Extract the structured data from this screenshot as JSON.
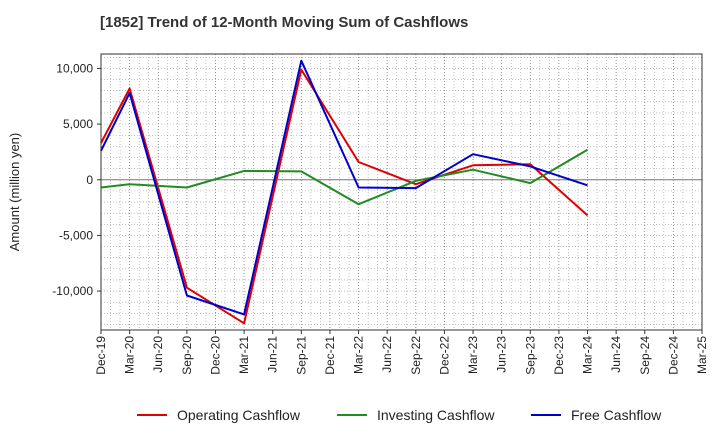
{
  "chart_data": {
    "type": "line",
    "title": "[1852]  Trend of 12-Month Moving Sum of Cashflows",
    "xlabel": "",
    "ylabel": "Amount (million yen)",
    "categories": [
      "Dec-19",
      "Mar-20",
      "Jun-20",
      "Sep-20",
      "Dec-20",
      "Mar-21",
      "Jun-21",
      "Sep-21",
      "Dec-21",
      "Mar-22",
      "Jun-22",
      "Sep-22",
      "Dec-22",
      "Mar-23",
      "Jun-23",
      "Sep-23",
      "Dec-23",
      "Mar-24",
      "Jun-24",
      "Sep-24",
      "Dec-24",
      "Mar-25"
    ],
    "ylim": [
      -13500,
      11300
    ],
    "yticks": [
      10000,
      5000,
      0,
      -5000,
      -10000
    ],
    "ytick_labels": [
      "10,000",
      "5,000",
      "0",
      "-5,000",
      "-10,000"
    ],
    "grid": true,
    "legend_position": "bottom",
    "series": [
      {
        "name": "Operating Cashflow",
        "color": "#e00000",
        "values": [
          3300,
          8200,
          null,
          -9700,
          null,
          -12900,
          null,
          9900,
          null,
          1600,
          null,
          -400,
          null,
          1300,
          null,
          1400,
          null,
          -3200,
          null,
          null,
          null,
          null
        ]
      },
      {
        "name": "Investing Cashflow",
        "color": "#228b22",
        "values": [
          -700,
          -400,
          null,
          -700,
          null,
          800,
          null,
          750,
          null,
          -2200,
          null,
          -100,
          null,
          900,
          null,
          -300,
          null,
          2700,
          null,
          null,
          null,
          null
        ]
      },
      {
        "name": "Free Cashflow",
        "color": "#0000cc",
        "values": [
          2600,
          7800,
          null,
          -10400,
          null,
          -12100,
          null,
          10700,
          null,
          -700,
          null,
          -750,
          null,
          2300,
          null,
          1200,
          null,
          -500,
          null,
          null,
          null,
          null
        ]
      }
    ]
  }
}
